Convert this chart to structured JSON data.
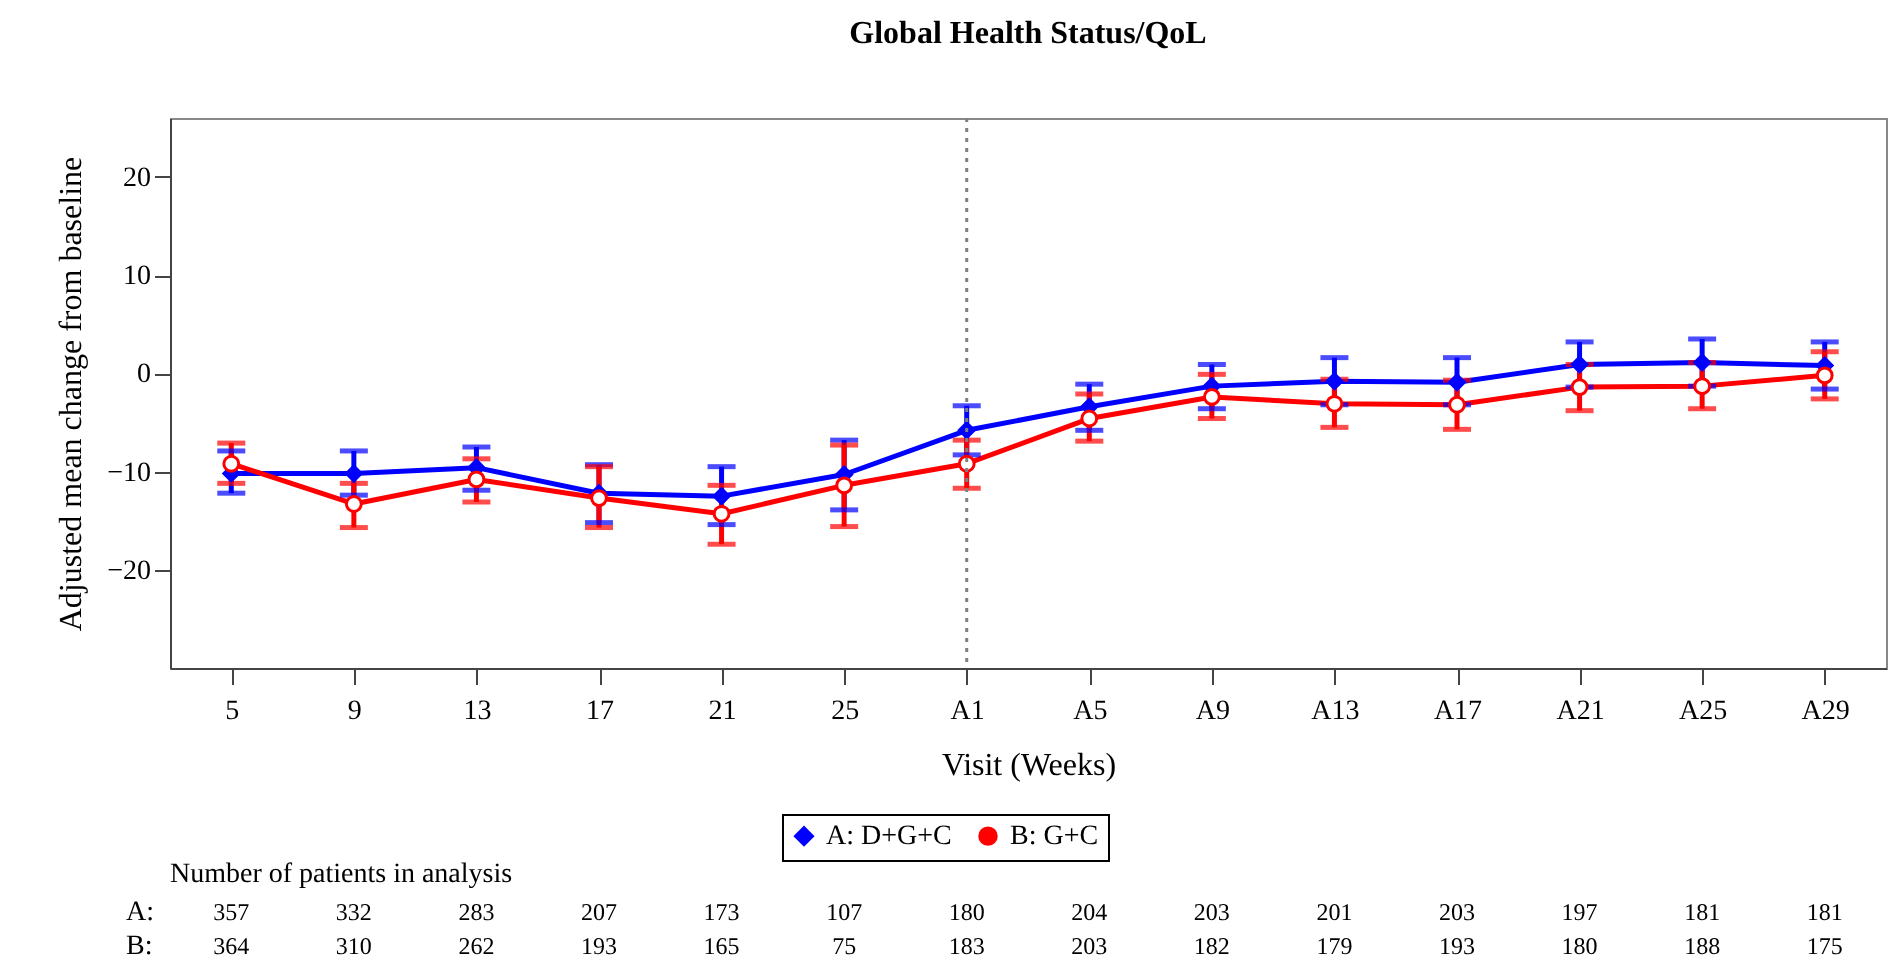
{
  "chart_data": {
    "type": "line",
    "title": "Global Health Status/QoL",
    "xlabel": "Visit (Weeks)",
    "ylabel": "Adjusted mean change from baseline",
    "categories": [
      "5",
      "9",
      "13",
      "17",
      "21",
      "25",
      "A1",
      "A5",
      "A9",
      "A13",
      "A17",
      "A21",
      "A25",
      "A29"
    ],
    "series": [
      {
        "name": "A: D+G+C",
        "color": "#0000ff",
        "marker": "diamond",
        "values": [
          -10.2,
          -10.2,
          -9.6,
          -12.2,
          -12.5,
          -10.3,
          -5.8,
          -3.4,
          -1.3,
          -0.8,
          -0.9,
          0.9,
          1.1,
          0.8
        ],
        "errors": [
          [
            -12.2,
            -7.9
          ],
          [
            -12.4,
            -7.9
          ],
          [
            -11.9,
            -7.5
          ],
          [
            -15.2,
            -9.3
          ],
          [
            -15.4,
            -9.5
          ],
          [
            -13.9,
            -6.8
          ],
          [
            -8.3,
            -3.3
          ],
          [
            -5.8,
            -1.1
          ],
          [
            -3.6,
            0.9
          ],
          [
            -3.2,
            1.6
          ],
          [
            -3.2,
            1.6
          ],
          [
            -1.4,
            3.2
          ],
          [
            -1.3,
            3.5
          ],
          [
            -1.6,
            3.2
          ]
        ]
      },
      {
        "name": "B: G+C",
        "color": "#ff0000",
        "marker": "circle",
        "values": [
          -9.2,
          -13.3,
          -10.8,
          -12.7,
          -14.3,
          -11.4,
          -9.2,
          -4.6,
          -2.4,
          -3.1,
          -3.2,
          -1.4,
          -1.3,
          -0.2
        ],
        "errors": [
          [
            -11.2,
            -7.1
          ],
          [
            -15.7,
            -11.2
          ],
          [
            -13.1,
            -8.7
          ],
          [
            -15.7,
            -9.5
          ],
          [
            -17.4,
            -11.4
          ],
          [
            -15.6,
            -7.3
          ],
          [
            -11.7,
            -6.8
          ],
          [
            -6.9,
            -2.1
          ],
          [
            -4.6,
            -0.1
          ],
          [
            -5.5,
            -0.6
          ],
          [
            -5.7,
            -0.7
          ],
          [
            -3.8,
            0.9
          ],
          [
            -3.6,
            1.1
          ],
          [
            -2.6,
            2.2
          ]
        ]
      }
    ],
    "ylim": [
      -30,
      26
    ],
    "yticks": [
      -20,
      -10,
      0,
      10,
      20
    ],
    "grid": false,
    "legend": "bottom",
    "line_style": "solid",
    "ref_lines": [
      {
        "axis": "x",
        "value": "A1",
        "color": "#808080",
        "line_style": "dotted"
      }
    ],
    "annotations": [
      "Number of patients in analysis",
      "A:",
      "357",
      "332",
      "283",
      "207",
      "173",
      "107",
      "180",
      "204",
      "203",
      "201",
      "203",
      "197",
      "181",
      "181",
      "B:",
      "364",
      "310",
      "262",
      "193",
      "165",
      "75",
      "183",
      "203",
      "182",
      "179",
      "193",
      "180",
      "188",
      "175"
    ]
  }
}
